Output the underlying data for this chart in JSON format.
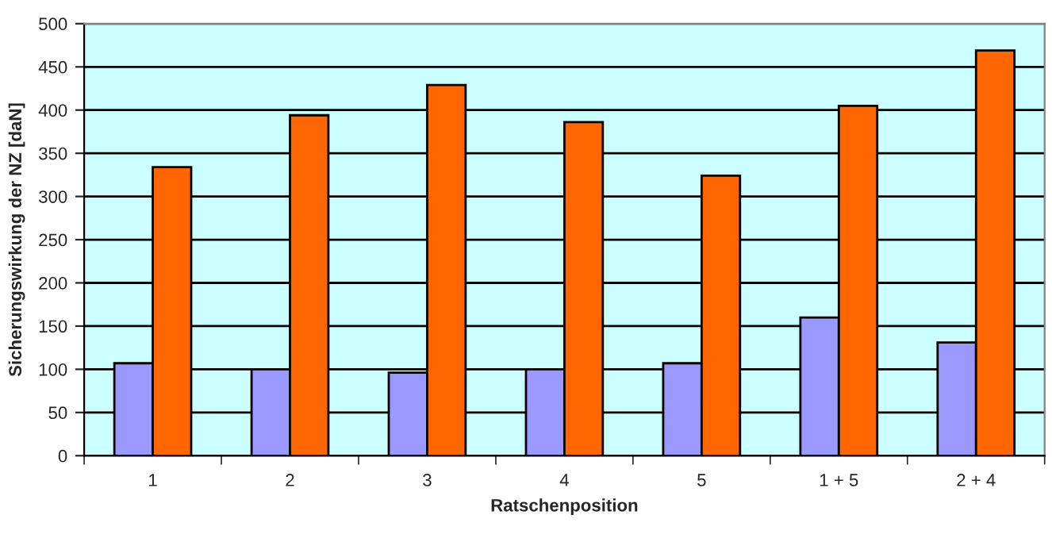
{
  "chart_data": {
    "type": "bar",
    "xlabel": "Ratschenposition",
    "ylabel": "Sicherungswirkung der NZ [daN]",
    "categories": [
      "1",
      "2",
      "3",
      "4",
      "5",
      "1 + 5",
      "2 + 4"
    ],
    "series": [
      {
        "color": "#9999ff",
        "values": [
          107,
          100,
          96,
          100,
          107,
          160,
          131
        ]
      },
      {
        "color": "#ff6600",
        "values": [
          334,
          394,
          429,
          386,
          324,
          405,
          469
        ]
      }
    ],
    "ylim": [
      0,
      500
    ],
    "yticks": [
      0,
      50,
      100,
      150,
      200,
      250,
      300,
      350,
      400,
      450,
      500
    ],
    "grid": "y",
    "legend": false
  }
}
